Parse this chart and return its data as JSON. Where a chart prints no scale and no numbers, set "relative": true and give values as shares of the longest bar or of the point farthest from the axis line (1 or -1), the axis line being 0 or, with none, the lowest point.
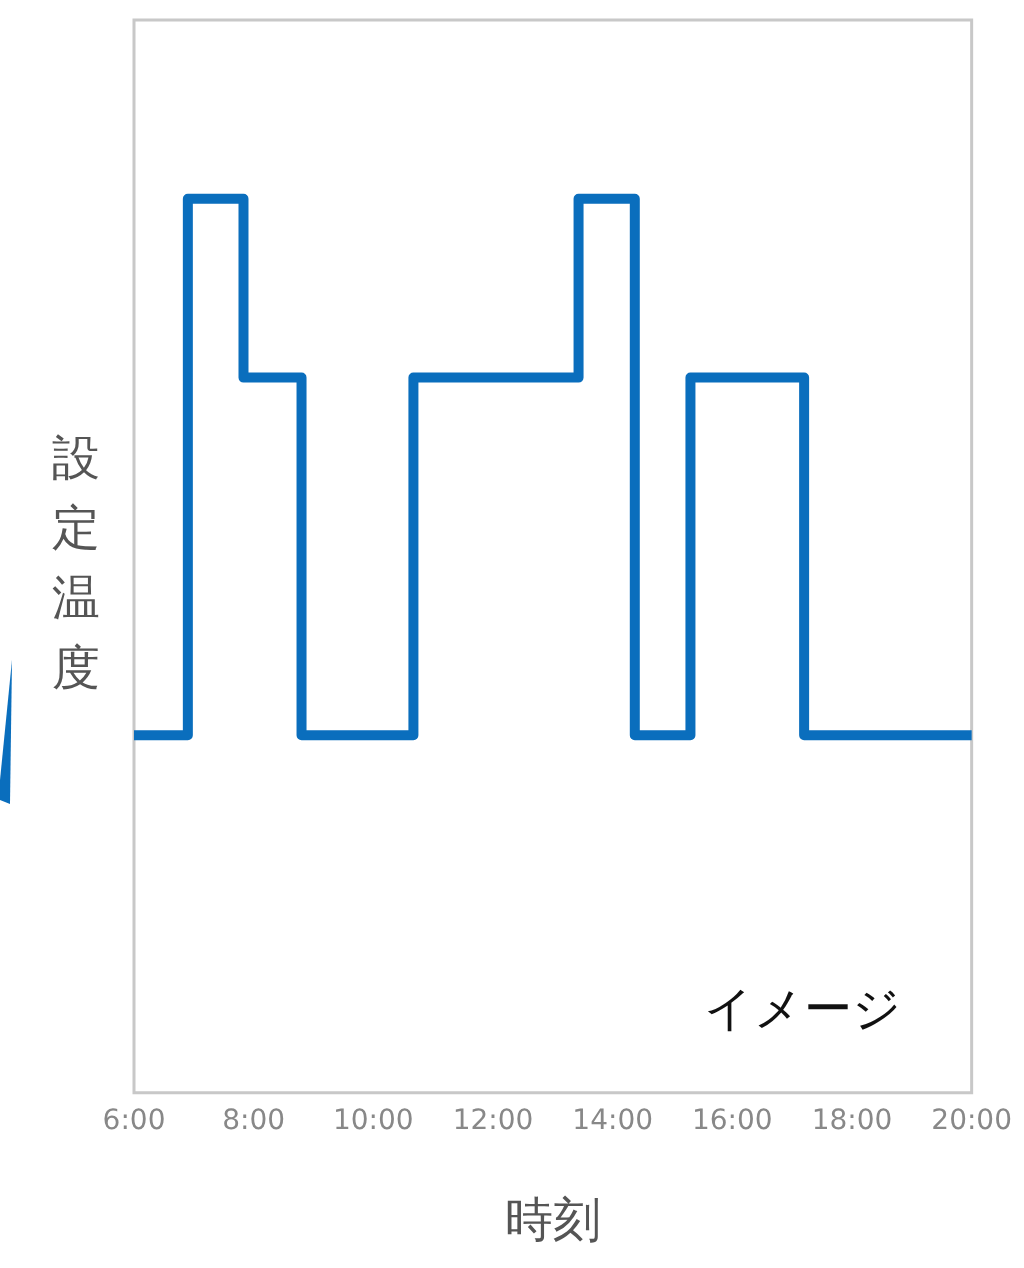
{
  "chart_data": {
    "type": "step",
    "relative": true,
    "xlabel": "時刻",
    "ylabel": "設定温度",
    "annotations": [
      "イメージ"
    ],
    "x": [
      6,
      6.9,
      7.83,
      8.8,
      10.67,
      13.43,
      14.37,
      15.3,
      17.2,
      20
    ],
    "series": [
      {
        "color": "#0a6ebd",
        "values": [
          0.4,
          1,
          0.8,
          0.4,
          0.8,
          1,
          0.4,
          0.8,
          0.4,
          0.4
        ]
      }
    ],
    "xlim": [
      6,
      20
    ],
    "xticks": [
      {
        "value": 6,
        "label": "6:00"
      },
      {
        "value": 8,
        "label": "8:00"
      },
      {
        "value": 10,
        "label": "10:00"
      },
      {
        "value": 12,
        "label": "12:00"
      },
      {
        "value": 14,
        "label": "14:00"
      },
      {
        "value": 16,
        "label": "16:00"
      },
      {
        "value": 18,
        "label": "18:00"
      },
      {
        "value": 20,
        "label": "20:00"
      }
    ],
    "grid": false,
    "legend": false,
    "marker": "none",
    "line_style": "solid"
  }
}
